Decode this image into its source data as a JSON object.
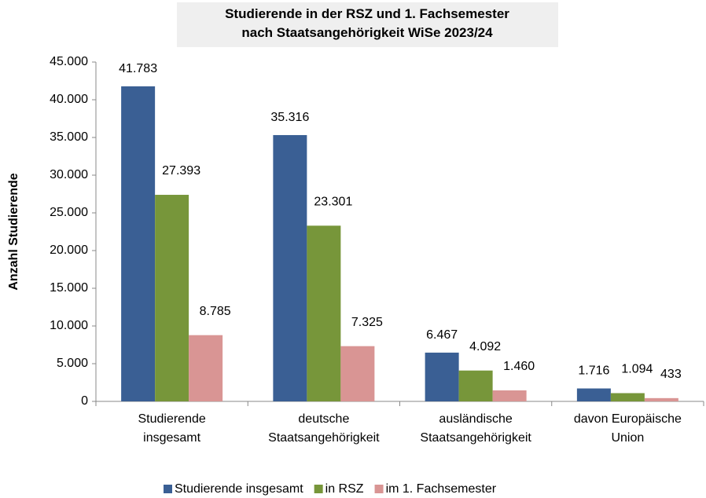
{
  "chart_data": {
    "type": "bar",
    "title": "Studierende in der RSZ und 1. Fachsemester\nnach Staatsangehörigkeit WiSe 2023/24",
    "y_label": "Anzahl Studierende",
    "categories": [
      "Studierende\ninsgesamt",
      "deutsche\nStaatsangehörigkeit",
      "ausländische\nStaatsangehörigkeit",
      "davon Europäische\nUnion"
    ],
    "series": [
      {
        "name": "Studierende insgesamt",
        "color": "#3a5f94",
        "values": [
          41783,
          35316,
          6467,
          1716
        ],
        "value_labels": [
          "41.783",
          "35.316",
          "6.467",
          "1.716"
        ]
      },
      {
        "name": "in RSZ",
        "color": "#77963a",
        "values": [
          27393,
          23301,
          4092,
          1094
        ],
        "value_labels": [
          "27.393",
          "23.301",
          "4.092",
          "1.094"
        ]
      },
      {
        "name": "im 1. Fachsemester",
        "color": "#d99594",
        "values": [
          8785,
          7325,
          1460,
          433
        ],
        "value_labels": [
          "8.785",
          "7.325",
          "1.460",
          "433"
        ]
      }
    ],
    "ylim": [
      0,
      45000
    ],
    "yticks": [
      0,
      {
        "value": 5000,
        "label": "5.000"
      },
      {
        "value": 10000,
        "label": "10.000"
      },
      {
        "value": 15000,
        "label": "15.000"
      },
      {
        "value": 20000,
        "label": "20.000"
      },
      {
        "value": 25000,
        "label": "25.000"
      },
      {
        "value": 30000,
        "label": "30.000"
      },
      {
        "value": 35000,
        "label": "35.000"
      },
      {
        "value": 40000,
        "label": "40.000"
      },
      {
        "value": 45000,
        "label": "45.000"
      }
    ],
    "legend": "bottom"
  }
}
